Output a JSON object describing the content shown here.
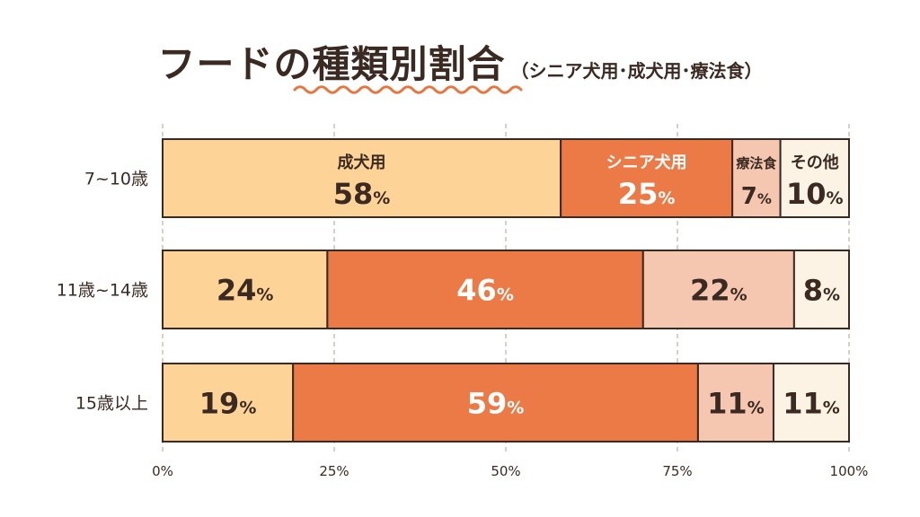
{
  "title": "フードの種類別割合",
  "subtitle": "（シニア犬用･成犬用･療法食）",
  "colors": {
    "wave": "#e8763f",
    "outline": "#3a2a22",
    "grid": "#b9b0a8",
    "text_dark": "#3a2a22",
    "text_light": "#ffffff"
  },
  "chart_data": {
    "type": "bar",
    "orientation": "horizontal",
    "stacked": true,
    "percent_axis": true,
    "categories": [
      "7~10歳",
      "11歳~14歳",
      "15歳以上"
    ],
    "series": [
      {
        "name": "成犬用",
        "values": [
          58,
          24,
          19
        ],
        "color": "#fdd397",
        "text": "dark"
      },
      {
        "name": "シニア犬用",
        "values": [
          25,
          46,
          59
        ],
        "color": "#ec7a47",
        "text": "light"
      },
      {
        "name": "療法食",
        "values": [
          7,
          22,
          11
        ],
        "color": "#f6c7b0",
        "text": "dark"
      },
      {
        "name": "その他",
        "values": [
          10,
          8,
          11
        ],
        "color": "#fdf3e5",
        "text": "dark"
      }
    ],
    "series_names_shown_on_row": 0,
    "x_ticks": [
      "0%",
      "25%",
      "50%",
      "75%",
      "100%"
    ],
    "xlim": [
      0,
      100
    ],
    "value_suffix": "%",
    "grid": true,
    "legend": "none"
  }
}
